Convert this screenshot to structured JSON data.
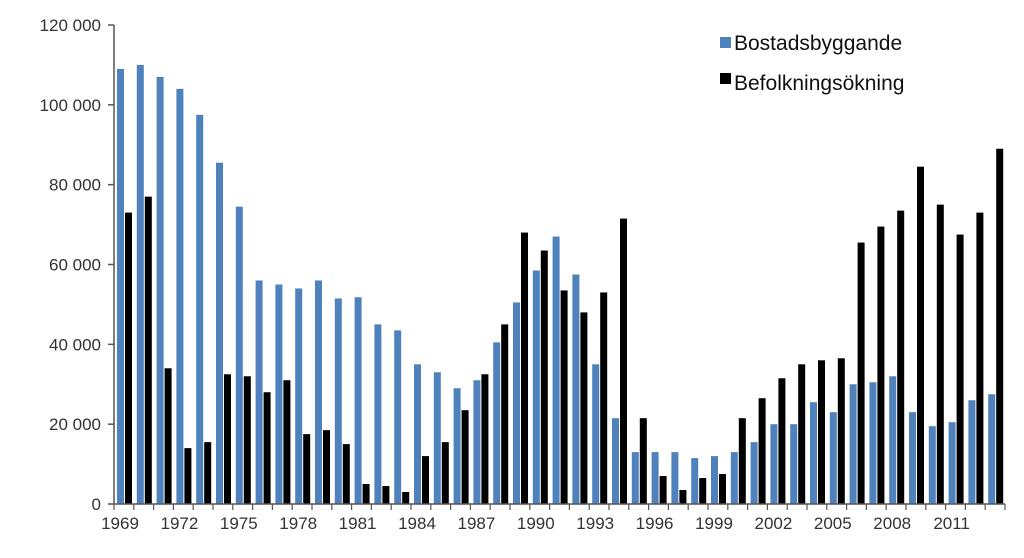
{
  "chart_data": {
    "type": "bar",
    "title": "",
    "xlabel": "",
    "ylabel": "",
    "ylim": [
      0,
      120000
    ],
    "yticks": [
      0,
      20000,
      40000,
      60000,
      80000,
      100000,
      120000
    ],
    "ytick_labels": [
      "0",
      "20 000",
      "40 000",
      "60 000",
      "80 000",
      "100 000",
      "120 000"
    ],
    "xtick_labels": [
      "1969",
      "1972",
      "1975",
      "1978",
      "1981",
      "1984",
      "1987",
      "1990",
      "1993",
      "1996",
      "1999",
      "2002",
      "2005",
      "2008",
      "2011"
    ],
    "categories": [
      "1969",
      "1970",
      "1971",
      "1972",
      "1973",
      "1974",
      "1975",
      "1976",
      "1977",
      "1978",
      "1979",
      "1980",
      "1981",
      "1982",
      "1983",
      "1984",
      "1985",
      "1986",
      "1987",
      "1988",
      "1989",
      "1990",
      "1991",
      "1992",
      "1993",
      "1994",
      "1995",
      "1996",
      "1997",
      "1998",
      "1999",
      "2000",
      "2001",
      "2002",
      "2003",
      "2004",
      "2005",
      "2006",
      "2007",
      "2008",
      "2009",
      "2010",
      "2011",
      "2012",
      "2013"
    ],
    "grid": false,
    "legend_position": "top-right",
    "series": [
      {
        "name": "Bostadsbyggande",
        "color": "#4f81bd",
        "values": [
          109000,
          110000,
          107000,
          104000,
          97500,
          85500,
          74500,
          56000,
          55000,
          54000,
          56000,
          51500,
          51800,
          45000,
          43500,
          35000,
          33000,
          29000,
          31000,
          40500,
          50500,
          58500,
          67000,
          57500,
          35000,
          21500,
          13000,
          13000,
          13000,
          11500,
          12000,
          13000,
          15500,
          20000,
          20000,
          25500,
          23000,
          30000,
          30500,
          32000,
          23000,
          19500,
          20500,
          26000,
          27500
        ]
      },
      {
        "name": "Befolkningsökning",
        "color": "#000000",
        "values": [
          73000,
          77000,
          34000,
          14000,
          15500,
          32500,
          32000,
          28000,
          31000,
          17500,
          18500,
          15000,
          5000,
          4500,
          3000,
          12000,
          15500,
          23500,
          32500,
          45000,
          68000,
          63500,
          53500,
          48000,
          53000,
          71500,
          21500,
          7000,
          3500,
          6500,
          7500,
          21500,
          26500,
          31500,
          35000,
          36000,
          36500,
          65500,
          69500,
          73500,
          84500,
          75000,
          67500,
          73000,
          89000
        ]
      }
    ]
  }
}
